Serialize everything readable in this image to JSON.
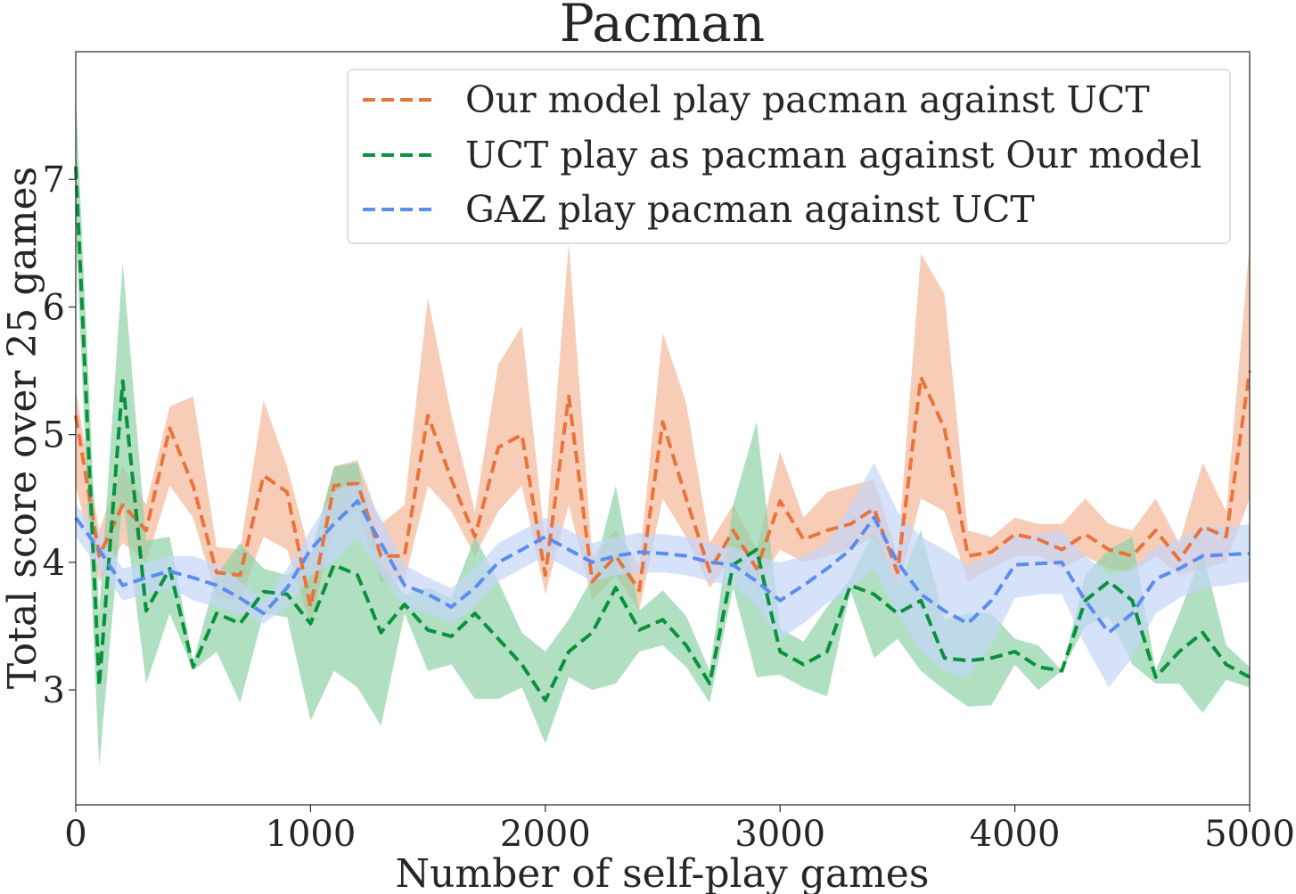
{
  "chart_data": {
    "type": "line",
    "title": "Pacman",
    "xlabel": "Number of self-play games",
    "ylabel": "Total score over 25 games",
    "xlim": [
      0,
      5000
    ],
    "ylim": [
      2.1,
      8.0
    ],
    "xticks": [
      0,
      1000,
      2000,
      3000,
      4000,
      5000
    ],
    "yticks": [
      3,
      4,
      5,
      6,
      7
    ],
    "grid": false,
    "legend_position": "top-right",
    "x": [
      0,
      100,
      200,
      300,
      400,
      500,
      600,
      700,
      800,
      900,
      1000,
      1100,
      1200,
      1300,
      1400,
      1500,
      1600,
      1700,
      1800,
      1900,
      2000,
      2100,
      2200,
      2300,
      2400,
      2500,
      2600,
      2700,
      2800,
      2900,
      3000,
      3100,
      3200,
      3300,
      3400,
      3500,
      3600,
      3700,
      3800,
      3900,
      4000,
      4100,
      4200,
      4300,
      4400,
      4500,
      4600,
      4700,
      4800,
      4900,
      5000
    ],
    "series": [
      {
        "name": "Our model play pacman against UCT",
        "color": "#e8743b",
        "fill_color": "#f3b89a",
        "values": [
          5.15,
          4.05,
          4.45,
          4.25,
          5.05,
          4.6,
          3.92,
          3.9,
          4.68,
          4.55,
          3.65,
          4.6,
          4.62,
          4.05,
          4.05,
          5.15,
          4.65,
          4.2,
          4.9,
          5.0,
          3.9,
          5.3,
          3.85,
          4.05,
          3.78,
          5.1,
          4.5,
          3.93,
          4.25,
          3.95,
          4.48,
          4.18,
          4.25,
          4.3,
          4.42,
          3.92,
          5.45,
          5.05,
          4.05,
          4.08,
          4.22,
          4.18,
          4.1,
          4.22,
          4.1,
          4.05,
          4.25,
          4.02,
          4.28,
          4.2,
          5.5
        ],
        "lower": [
          4.6,
          3.85,
          4.15,
          4.0,
          4.6,
          4.35,
          3.72,
          3.7,
          4.2,
          4.1,
          3.5,
          4.3,
          4.4,
          3.85,
          3.85,
          4.6,
          4.4,
          4.05,
          4.4,
          4.6,
          3.75,
          4.45,
          3.7,
          3.9,
          3.62,
          4.5,
          4.2,
          3.8,
          4.05,
          3.82,
          4.1,
          4.0,
          4.05,
          4.1,
          4.2,
          3.78,
          4.5,
          4.4,
          3.85,
          3.95,
          4.05,
          4.05,
          3.95,
          4.05,
          3.95,
          3.92,
          4.05,
          3.9,
          3.95,
          4.0,
          4.5
        ],
        "upper": [
          5.35,
          4.25,
          4.75,
          4.45,
          5.22,
          5.3,
          4.12,
          4.1,
          5.27,
          4.75,
          4.05,
          4.75,
          4.8,
          4.3,
          4.45,
          6.07,
          5.15,
          4.4,
          5.55,
          5.85,
          4.15,
          6.5,
          4.05,
          4.25,
          3.98,
          5.8,
          5.25,
          4.15,
          4.45,
          4.1,
          4.87,
          4.35,
          4.55,
          4.6,
          4.65,
          4.05,
          6.42,
          6.1,
          4.25,
          4.2,
          4.35,
          4.3,
          4.3,
          4.5,
          4.3,
          4.25,
          4.5,
          4.15,
          4.78,
          4.4,
          6.5
        ]
      },
      {
        "name": "UCT play as pacman against Our model",
        "color": "#0a913c",
        "fill_color": "#8fd1a6",
        "values": [
          7.1,
          3.03,
          5.42,
          3.62,
          3.95,
          3.18,
          3.6,
          3.52,
          3.77,
          3.75,
          3.52,
          3.98,
          3.9,
          3.45,
          3.67,
          3.47,
          3.42,
          3.6,
          3.4,
          3.2,
          2.92,
          3.3,
          3.45,
          3.8,
          3.47,
          3.55,
          3.35,
          3.05,
          3.98,
          4.1,
          3.3,
          3.2,
          3.3,
          3.82,
          3.75,
          3.6,
          3.7,
          3.25,
          3.23,
          3.25,
          3.3,
          3.18,
          3.15,
          3.7,
          3.85,
          3.7,
          3.1,
          3.3,
          3.45,
          3.2,
          3.1
        ],
        "lower": [
          6.6,
          2.4,
          4.5,
          3.05,
          3.6,
          3.15,
          3.3,
          2.9,
          3.6,
          3.57,
          2.76,
          3.15,
          3.02,
          2.72,
          3.6,
          3.15,
          3.2,
          2.93,
          2.93,
          3.02,
          2.58,
          3.1,
          3.0,
          3.05,
          3.3,
          3.35,
          3.18,
          2.9,
          3.8,
          3.1,
          3.12,
          3.02,
          2.95,
          3.78,
          3.25,
          3.4,
          3.15,
          3.0,
          2.87,
          2.88,
          3.2,
          3.0,
          3.15,
          3.5,
          3.58,
          3.2,
          3.05,
          3.05,
          2.82,
          3.08,
          3.02
        ],
        "upper": [
          7.65,
          3.6,
          6.35,
          4.17,
          4.2,
          3.22,
          3.9,
          4.15,
          3.95,
          3.9,
          4.05,
          4.75,
          4.78,
          4.0,
          3.75,
          3.8,
          3.72,
          4.2,
          3.85,
          3.45,
          3.3,
          3.55,
          3.88,
          4.6,
          3.62,
          3.78,
          3.58,
          3.15,
          4.45,
          5.1,
          3.48,
          3.38,
          3.65,
          3.87,
          4.25,
          3.8,
          4.25,
          3.55,
          3.6,
          3.6,
          3.4,
          3.35,
          3.15,
          3.9,
          4.1,
          4.2,
          3.15,
          3.6,
          4.08,
          3.35,
          3.18
        ]
      },
      {
        "name": "GAZ play pacman against UCT",
        "color": "#5b8def",
        "fill_color": "#c4d5f8",
        "values": [
          4.35,
          4.1,
          3.82,
          3.88,
          3.93,
          3.88,
          3.82,
          3.72,
          3.6,
          3.8,
          4.1,
          4.3,
          4.48,
          4.15,
          3.82,
          3.75,
          3.65,
          3.8,
          4.0,
          4.1,
          4.2,
          4.1,
          4.0,
          4.05,
          4.08,
          4.07,
          4.05,
          4.0,
          3.98,
          3.85,
          3.7,
          3.82,
          3.95,
          4.1,
          4.35,
          4.0,
          3.75,
          3.62,
          3.52,
          3.7,
          3.98,
          3.99,
          4.0,
          3.7,
          3.45,
          3.6,
          3.87,
          3.95,
          4.05,
          4.06,
          4.07
        ],
        "lower": [
          4.2,
          3.95,
          3.7,
          3.75,
          3.8,
          3.7,
          3.65,
          3.6,
          3.52,
          3.65,
          3.9,
          4.0,
          4.2,
          3.9,
          3.65,
          3.6,
          3.52,
          3.65,
          3.85,
          3.95,
          4.05,
          3.95,
          3.85,
          3.9,
          3.92,
          3.92,
          3.9,
          3.85,
          3.82,
          3.65,
          3.4,
          3.52,
          3.68,
          3.78,
          3.95,
          3.6,
          3.3,
          3.15,
          3.1,
          3.35,
          3.72,
          3.75,
          3.75,
          3.35,
          3.02,
          3.25,
          3.6,
          3.72,
          3.8,
          3.82,
          3.85
        ],
        "upper": [
          4.45,
          4.25,
          3.95,
          4.0,
          4.05,
          4.05,
          3.98,
          3.85,
          3.7,
          3.95,
          4.25,
          4.55,
          4.65,
          4.35,
          3.98,
          3.88,
          3.8,
          3.95,
          4.15,
          4.25,
          4.35,
          4.25,
          4.15,
          4.2,
          4.23,
          4.22,
          4.2,
          4.15,
          4.12,
          4.05,
          4.0,
          4.05,
          4.15,
          4.45,
          4.78,
          4.4,
          4.2,
          4.1,
          3.98,
          4.05,
          4.2,
          4.22,
          4.25,
          4.05,
          3.9,
          3.95,
          4.12,
          4.18,
          4.28,
          4.28,
          4.3
        ]
      }
    ]
  }
}
